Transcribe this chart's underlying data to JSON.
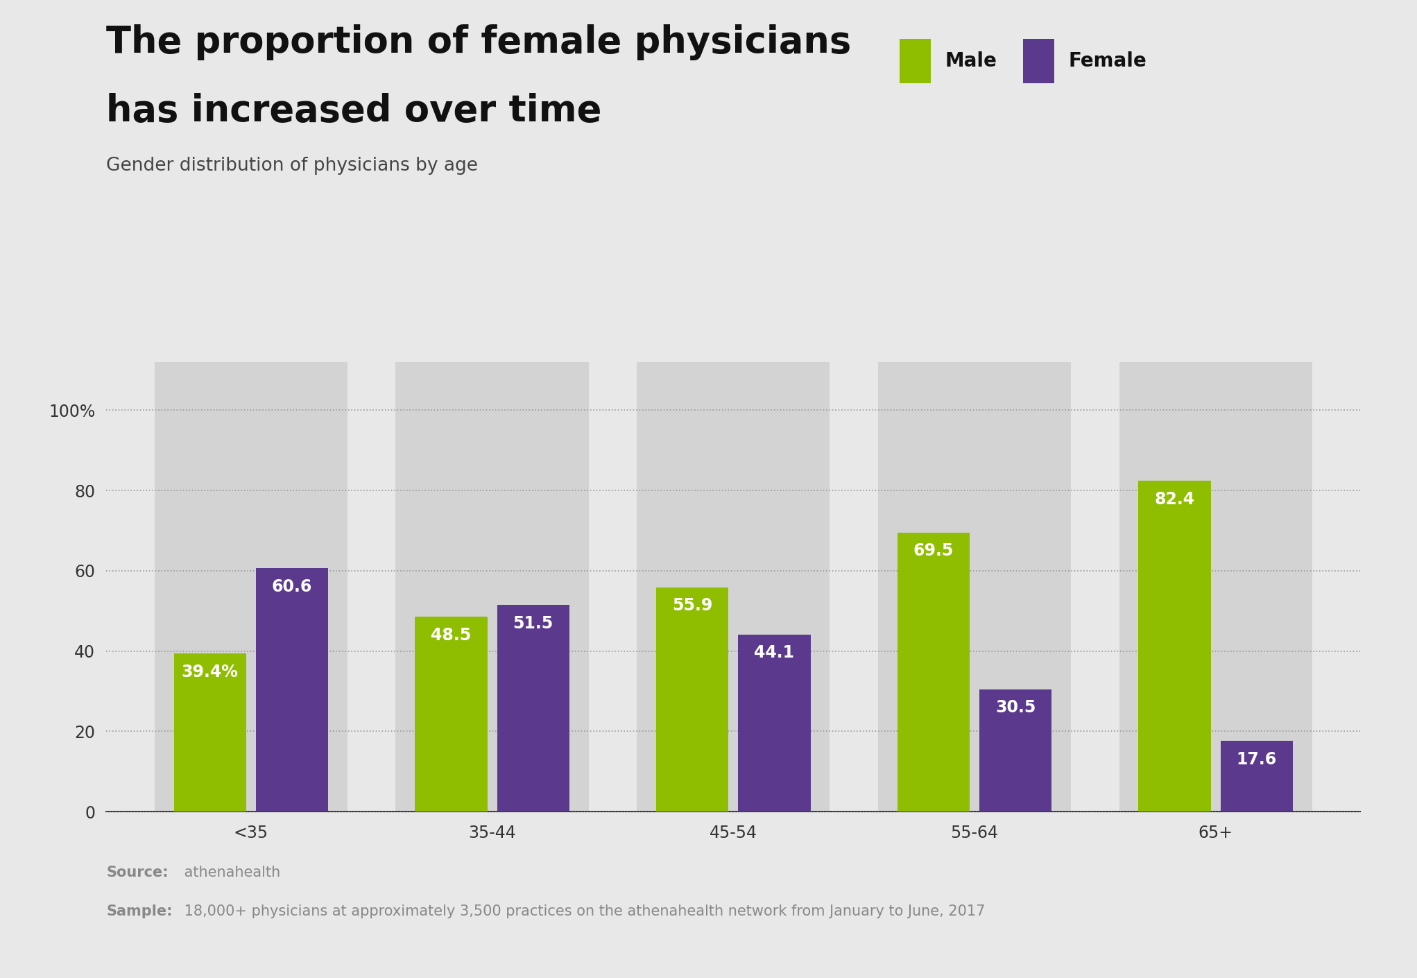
{
  "title_line1": "The proportion of female physicians",
  "title_line2": "has increased over time",
  "subtitle": "Gender distribution of physicians by age",
  "categories": [
    "<35",
    "35-44",
    "45-54",
    "55-64",
    "65+"
  ],
  "male_values": [
    39.4,
    48.5,
    55.9,
    69.5,
    82.4
  ],
  "female_values": [
    60.6,
    51.5,
    44.1,
    30.5,
    17.6
  ],
  "male_labels": [
    "39.4%",
    "48.5",
    "55.9",
    "69.5",
    "82.4"
  ],
  "female_labels": [
    "60.6",
    "51.5",
    "44.1",
    "30.5",
    "17.6"
  ],
  "male_color": "#8fbe00",
  "female_color": "#5b3a8e",
  "bar_panel_color": "#d3d3d3",
  "background_color": "#e8e8e8",
  "ylim": [
    0,
    112
  ],
  "yticks": [
    0,
    20,
    40,
    60,
    80,
    100
  ],
  "ytick_labels": [
    "0",
    "20",
    "40",
    "60",
    "80",
    "100%"
  ],
  "legend_male": "Male",
  "legend_female": "Female",
  "source_bold": "Source:",
  "source_normal": " athenahealth",
  "sample_bold": "Sample:",
  "sample_normal": " 18,000+ physicians at approximately 3,500 practices on the athenahealth network from January to June, 2017",
  "title_fontsize": 38,
  "subtitle_fontsize": 19,
  "bar_label_fontsize": 17,
  "axis_fontsize": 17,
  "legend_fontsize": 20,
  "footnote_fontsize": 15
}
